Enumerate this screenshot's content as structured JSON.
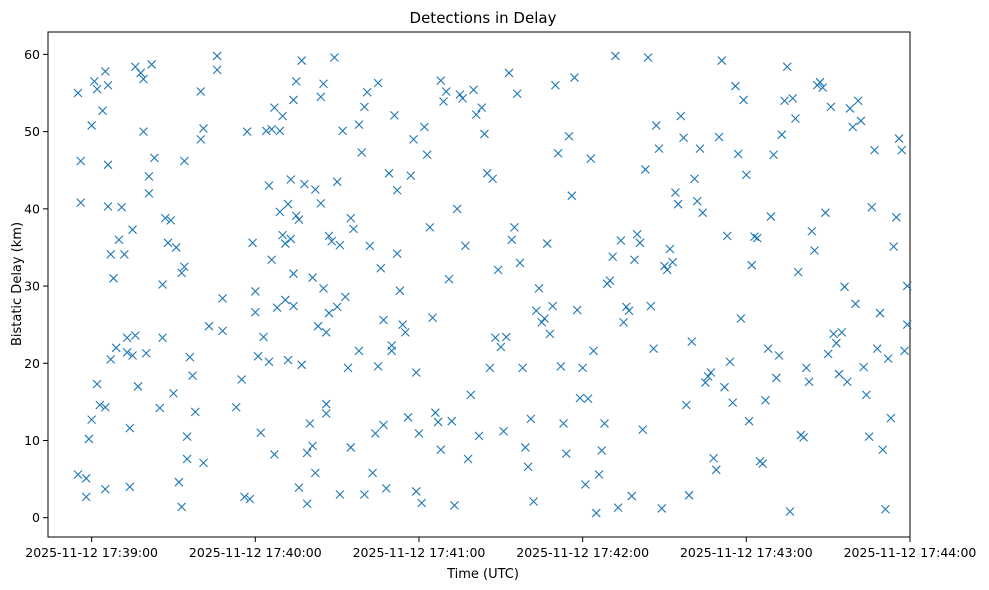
{
  "chart_data": {
    "type": "scatter",
    "title": "Detections in Delay",
    "xlabel": "Time (UTC)",
    "ylabel": "Bistatic Delay (km)",
    "marker": "x",
    "color": "#1f77b4",
    "grid": false,
    "legend": "none",
    "x_unit": "UTC time",
    "xlim": [
      "2025-11-12 17:38:44",
      "2025-11-12 17:44:00"
    ],
    "ylim": [
      -2.5,
      62.9
    ],
    "xticks": [
      {
        "value": "2025-11-12 17:39:00",
        "label": "2025-11-12 17:39:00"
      },
      {
        "value": "2025-11-12 17:40:00",
        "label": "2025-11-12 17:40:00"
      },
      {
        "value": "2025-11-12 17:41:00",
        "label": "2025-11-12 17:41:00"
      },
      {
        "value": "2025-11-12 17:42:00",
        "label": "2025-11-12 17:42:00"
      },
      {
        "value": "2025-11-12 17:43:00",
        "label": "2025-11-12 17:43:00"
      },
      {
        "value": "2025-11-12 17:44:00",
        "label": "2025-11-12 17:44:00"
      }
    ],
    "yticks": [
      0,
      10,
      20,
      30,
      40,
      50,
      60
    ],
    "x": [
      "17:38:55",
      "17:38:55",
      "17:38:56",
      "17:38:56",
      "17:38:58",
      "17:38:58",
      "17:38:59",
      "17:39:00",
      "17:39:00",
      "17:39:01",
      "17:39:02",
      "17:39:02",
      "17:39:03",
      "17:39:04",
      "17:39:05",
      "17:39:05",
      "17:39:05",
      "17:39:06",
      "17:39:06",
      "17:39:06",
      "17:39:07",
      "17:39:07",
      "17:39:08",
      "17:39:09",
      "17:39:10",
      "17:39:11",
      "17:39:12",
      "17:39:13",
      "17:39:13",
      "17:39:14",
      "17:39:14",
      "17:39:15",
      "17:39:15",
      "17:39:16",
      "17:39:16",
      "17:39:17",
      "17:39:18",
      "17:39:19",
      "17:39:19",
      "17:39:20",
      "17:39:21",
      "17:39:21",
      "17:39:22",
      "17:39:23",
      "17:39:25",
      "17:39:26",
      "17:39:26",
      "17:39:27",
      "17:39:28",
      "17:39:29",
      "17:39:30",
      "17:39:31",
      "17:39:32",
      "17:39:33",
      "17:39:33",
      "17:39:34",
      "17:39:34",
      "17:39:35",
      "17:39:35",
      "17:39:36",
      "17:39:37",
      "17:39:38",
      "17:39:40",
      "17:39:40",
      "17:39:41",
      "17:39:41",
      "17:39:43",
      "17:39:46",
      "17:39:46",
      "17:39:48",
      "17:39:48",
      "17:39:53",
      "17:39:55",
      "17:39:56",
      "17:39:57",
      "17:39:58",
      "17:39:59",
      "17:40:00",
      "17:40:00",
      "17:40:01",
      "17:40:02",
      "17:40:03",
      "17:40:04",
      "17:40:05",
      "17:40:05",
      "17:40:06",
      "17:40:06",
      "17:40:07",
      "17:40:07",
      "17:40:08",
      "17:40:09",
      "17:40:09",
      "17:40:10",
      "17:40:10",
      "17:40:11",
      "17:40:11",
      "17:40:12",
      "17:40:12",
      "17:40:13",
      "17:40:13",
      "17:40:14",
      "17:40:14",
      "17:40:14",
      "17:40:15",
      "17:40:15",
      "17:40:16",
      "17:40:16",
      "17:40:17",
      "17:40:17",
      "17:40:18",
      "17:40:19",
      "17:40:19",
      "17:40:20",
      "17:40:21",
      "17:40:21",
      "17:40:22",
      "17:40:22",
      "17:40:23",
      "17:40:24",
      "17:40:24",
      "17:40:25",
      "17:40:25",
      "17:40:26",
      "17:40:26",
      "17:40:26",
      "17:40:27",
      "17:40:27",
      "17:40:28",
      "17:40:29",
      "17:40:30",
      "17:40:30",
      "17:40:31",
      "17:40:31",
      "17:40:32",
      "17:40:33",
      "17:40:34",
      "17:40:35",
      "17:40:35",
      "17:40:36",
      "17:40:38",
      "17:40:38",
      "17:40:39",
      "17:40:40",
      "17:40:40",
      "17:40:41",
      "17:40:42",
      "17:40:43",
      "17:40:44",
      "17:40:45",
      "17:40:45",
      "17:40:46",
      "17:40:47",
      "17:40:47",
      "17:40:48",
      "17:40:49",
      "17:40:50",
      "17:40:50",
      "17:40:51",
      "17:40:52",
      "17:40:52",
      "17:40:53",
      "17:40:54",
      "17:40:55",
      "17:40:56",
      "17:40:57",
      "17:40:58",
      "17:40:59",
      "17:40:59",
      "17:41:00",
      "17:41:01",
      "17:41:02",
      "17:41:03",
      "17:41:04",
      "17:41:05",
      "17:41:06",
      "17:41:07",
      "17:41:08",
      "17:41:08",
      "17:41:09",
      "17:41:10",
      "17:41:11",
      "17:41:12",
      "17:41:13",
      "17:41:14",
      "17:41:15",
      "17:41:16",
      "17:41:17",
      "17:41:18",
      "17:41:19",
      "17:41:20",
      "17:41:21",
      "17:41:22",
      "17:41:23",
      "17:41:24",
      "17:41:25",
      "17:41:26",
      "17:41:27",
      "17:41:28",
      "17:41:29",
      "17:41:30",
      "17:41:31",
      "17:41:32",
      "17:41:33",
      "17:41:34",
      "17:41:35",
      "17:41:36",
      "17:41:37",
      "17:41:38",
      "17:41:39",
      "17:41:40",
      "17:41:41",
      "17:41:42",
      "17:41:43",
      "17:41:44",
      "17:41:45",
      "17:41:46",
      "17:41:47",
      "17:41:48",
      "17:41:49",
      "17:41:50",
      "17:41:51",
      "17:41:52",
      "17:41:53",
      "17:41:54",
      "17:41:55",
      "17:41:56",
      "17:41:57",
      "17:41:58",
      "17:41:59",
      "17:42:00",
      "17:42:01",
      "17:42:02",
      "17:42:03",
      "17:42:04",
      "17:42:05",
      "17:42:06",
      "17:42:07",
      "17:42:08",
      "17:42:09",
      "17:42:10",
      "17:42:11",
      "17:42:12",
      "17:42:13",
      "17:42:14",
      "17:42:15",
      "17:42:16",
      "17:42:17",
      "17:42:18",
      "17:42:19",
      "17:42:20",
      "17:42:21",
      "17:42:22",
      "17:42:23",
      "17:42:24",
      "17:42:25",
      "17:42:26",
      "17:42:27",
      "17:42:28",
      "17:42:29",
      "17:42:30",
      "17:42:31",
      "17:42:32",
      "17:42:33",
      "17:42:34",
      "17:42:35",
      "17:42:36",
      "17:42:37",
      "17:42:38",
      "17:42:39",
      "17:42:40",
      "17:42:41",
      "17:42:42",
      "17:42:43",
      "17:42:44",
      "17:42:45",
      "17:42:46",
      "17:42:47",
      "17:42:48",
      "17:42:49",
      "17:42:50",
      "17:42:51",
      "17:42:52",
      "17:42:53",
      "17:42:54",
      "17:42:55",
      "17:42:56",
      "17:42:57",
      "17:42:58",
      "17:42:59",
      "17:43:00",
      "17:43:01",
      "17:43:02",
      "17:43:03",
      "17:43:04",
      "17:43:05",
      "17:43:06",
      "17:43:07",
      "17:43:08",
      "17:43:09",
      "17:43:10",
      "17:43:11",
      "17:43:12",
      "17:43:13",
      "17:43:14",
      "17:43:15",
      "17:43:16",
      "17:43:17",
      "17:43:18",
      "17:43:19",
      "17:43:20",
      "17:43:21",
      "17:43:22",
      "17:43:23",
      "17:43:24",
      "17:43:25",
      "17:43:26",
      "17:43:27",
      "17:43:28",
      "17:43:29",
      "17:43:30",
      "17:43:31",
      "17:43:32",
      "17:43:33",
      "17:43:34",
      "17:43:35",
      "17:43:36",
      "17:43:37",
      "17:43:38",
      "17:43:39",
      "17:43:40",
      "17:43:41",
      "17:43:42",
      "17:43:43",
      "17:43:44",
      "17:43:45",
      "17:43:46",
      "17:43:47",
      "17:43:48",
      "17:43:49",
      "17:43:50",
      "17:43:51",
      "17:43:52",
      "17:43:53",
      "17:43:54",
      "17:43:55",
      "17:43:56",
      "17:43:57",
      "17:43:58",
      "17:43:59",
      "17:43:59"
    ],
    "y": [
      55.0,
      5.6,
      40.8,
      46.2,
      5.1,
      2.7,
      10.2,
      12.7,
      50.8,
      56.5,
      55.5,
      17.3,
      14.6,
      52.7,
      14.3,
      3.7,
      57.8,
      56.0,
      45.7,
      40.3,
      34.1,
      20.5,
      31.0,
      22.0,
      36.0,
      40.2,
      34.1,
      23.3,
      21.4,
      11.6,
      4.0,
      21.0,
      37.3,
      58.4,
      23.6,
      17.0,
      57.6,
      56.8,
      50.0,
      21.3,
      42.0,
      44.2,
      58.7,
      46.6,
      14.2,
      30.2,
      23.3,
      38.8,
      35.6,
      38.5,
      16.1,
      35.0,
      4.6,
      31.7,
      1.4,
      46.2,
      32.5,
      10.5,
      7.6,
      20.8,
      18.4,
      13.7,
      49.0,
      55.2,
      7.1,
      50.4,
      24.8,
      58.0,
      59.8,
      28.4,
      24.2,
      14.3,
      17.9,
      2.7,
      50.0,
      2.4,
      35.6,
      26.6,
      29.3,
      20.9,
      11.0,
      23.4,
      50.1,
      20.2,
      43.0,
      50.3,
      33.4,
      53.1,
      8.2,
      27.2,
      50.1,
      39.6,
      36.6,
      52.0,
      35.5,
      28.2,
      20.4,
      40.6,
      36.1,
      43.8,
      31.6,
      27.4,
      54.1,
      56.5,
      39.1,
      38.6,
      3.9,
      19.8,
      59.2,
      43.2,
      8.4,
      1.8,
      12.2,
      9.3,
      31.1,
      42.5,
      5.8,
      24.8,
      40.7,
      54.5,
      56.2,
      29.7,
      24.0,
      14.7,
      13.5,
      26.5,
      36.5,
      35.8,
      59.6,
      27.3,
      43.5,
      3.0,
      35.3,
      50.1,
      28.6,
      19.4,
      9.1,
      38.8,
      37.4,
      50.9,
      21.6,
      47.3,
      3.0,
      53.2,
      55.1,
      35.2,
      5.8,
      10.9,
      19.6,
      56.3,
      32.3,
      25.6,
      12.0,
      3.8,
      44.6,
      21.6,
      22.3,
      52.1,
      42.4,
      34.2,
      29.4,
      25.0,
      24.0,
      13.0,
      44.3,
      49.0,
      3.4,
      18.8,
      10.9,
      1.9,
      50.6,
      47.0,
      37.6,
      25.9,
      13.6,
      12.4,
      8.8,
      56.6,
      53.9,
      55.2,
      30.9,
      12.5,
      1.6,
      40.0,
      54.8,
      54.3,
      35.2,
      7.6,
      15.9,
      55.4,
      52.2,
      10.6,
      53.1,
      49.7,
      44.6,
      19.4,
      43.9,
      23.3,
      32.1,
      22.1,
      11.2,
      23.4,
      57.6,
      36.0,
      37.6,
      54.9,
      33.0,
      19.4,
      9.1,
      6.6,
      12.8,
      2.1,
      26.8,
      29.7,
      25.3,
      25.8,
      35.5,
      23.8,
      27.4,
      56.0,
      47.2,
      19.6,
      12.2,
      8.3,
      49.4,
      41.7,
      57.0,
      26.9,
      15.5,
      19.4,
      4.3,
      15.4,
      46.5,
      21.6,
      0.6,
      5.6,
      8.7,
      12.2,
      30.3,
      30.7,
      33.8,
      59.8,
      1.3,
      35.9,
      25.3,
      27.3,
      26.8,
      2.8,
      33.4,
      36.7,
      35.6,
      11.4,
      45.1,
      59.6,
      27.4,
      21.9,
      50.8,
      47.8,
      1.2,
      32.6,
      32.1,
      34.8,
      33.1,
      42.1,
      40.6,
      52.0,
      49.2,
      14.6,
      2.9,
      22.8,
      43.9,
      41.0,
      47.8,
      39.5,
      17.5,
      18.3,
      18.8,
      7.7,
      6.2,
      49.3,
      59.2,
      16.9,
      36.5,
      20.2,
      14.9,
      55.9,
      47.1,
      25.8,
      54.1,
      44.4,
      12.5,
      32.7,
      36.4,
      36.2,
      7.3,
      7.0,
      15.2,
      21.9,
      39.0,
      47.0,
      18.1,
      21.0,
      49.6,
      54.0,
      58.4,
      0.8,
      54.3,
      51.7,
      31.8,
      10.7,
      10.4,
      19.4,
      17.6,
      37.1,
      34.6,
      56.0,
      56.4,
      55.7,
      39.5,
      21.2,
      53.2,
      23.8,
      22.6,
      18.6,
      24.0,
      29.9,
      17.6,
      53.0,
      50.6,
      27.7,
      54.0,
      51.4,
      19.5,
      15.9,
      10.5,
      40.2,
      47.6,
      21.9,
      26.5,
      8.8,
      1.1,
      20.6,
      12.9,
      35.1,
      38.9,
      49.1,
      47.6,
      21.6,
      25.0,
      30.0
    ]
  }
}
